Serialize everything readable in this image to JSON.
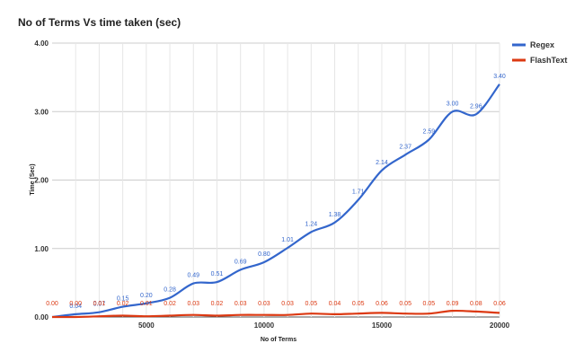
{
  "chart_data": {
    "type": "line",
    "title": "No of Terms Vs time taken (sec)",
    "xlabel": "No of Terms",
    "ylabel": "Time (Sec)",
    "xlim": [
      1000,
      20000
    ],
    "ylim": [
      0,
      4
    ],
    "xticks": [
      5000,
      10000,
      15000,
      20000
    ],
    "yticks": [
      0,
      1,
      2,
      3,
      4
    ],
    "x_tick_labels": [
      "5000",
      "10000",
      "15000",
      "20000"
    ],
    "y_tick_labels": [
      "0.00",
      "1.00",
      "2.00",
      "3.00",
      "4.00"
    ],
    "grid": true,
    "legend_position": "top-right",
    "x": [
      1000,
      2000,
      3000,
      4000,
      5000,
      6000,
      7000,
      8000,
      9000,
      10000,
      11000,
      12000,
      13000,
      14000,
      15000,
      16000,
      17000,
      18000,
      19000,
      20000
    ],
    "series": [
      {
        "name": "Regex",
        "color": "#3366cc",
        "values": [
          0.0,
          0.04,
          0.07,
          0.15,
          0.2,
          0.28,
          0.49,
          0.51,
          0.69,
          0.8,
          1.01,
          1.24,
          1.38,
          1.71,
          2.14,
          2.37,
          2.59,
          3.0,
          2.96,
          3.4
        ],
        "labels": [
          "",
          "0.04",
          "0.07",
          "0.15",
          "0.20",
          "0.28",
          "0.49",
          "0.51",
          "0.69",
          "0.80",
          "1.01",
          "1.24",
          "1.38",
          "1.71",
          "2.14",
          "2.37",
          "2.59",
          "3.00",
          "2.96",
          "3.40"
        ]
      },
      {
        "name": "FlashText",
        "color": "#dc3912",
        "values": [
          0.0,
          0.0,
          0.01,
          0.02,
          0.01,
          0.02,
          0.03,
          0.02,
          0.03,
          0.03,
          0.03,
          0.05,
          0.04,
          0.05,
          0.06,
          0.05,
          0.05,
          0.09,
          0.08,
          0.06
        ],
        "labels": [
          "0.00",
          "0.00",
          "0.01",
          "0.02",
          "0.01",
          "0.02",
          "0.03",
          "0.02",
          "0.03",
          "0.03",
          "0.03",
          "0.05",
          "0.04",
          "0.05",
          "0.06",
          "0.05",
          "0.05",
          "0.09",
          "0.08",
          "0.06"
        ]
      }
    ]
  }
}
